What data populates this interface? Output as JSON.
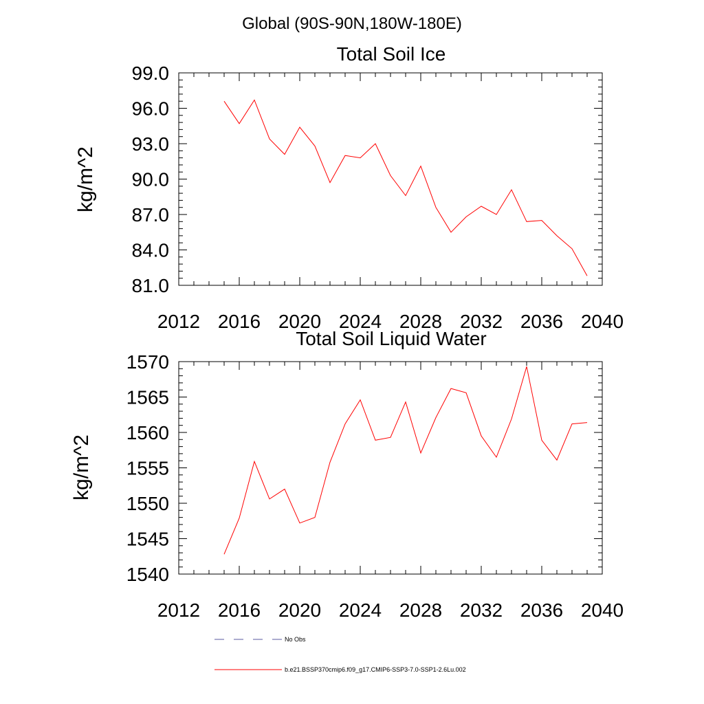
{
  "header": {
    "title": "Global (90S-90N,180W-180E)"
  },
  "legend": {
    "obs_label": "No Obs",
    "obs_color": "#5a5aa0",
    "model_label": "b.e21.BSSP370cmip6.f09_g17.CMIP6-SSP3-7.0-SSP1-2.6Lu.002",
    "model_color": "#ff0000"
  },
  "chart_data": [
    {
      "type": "line",
      "title": "Total Soil Ice",
      "ylabel": "kg/m^2",
      "xlabel": "",
      "xlim": [
        2012,
        2040
      ],
      "ylim": [
        81,
        99
      ],
      "x_ticks": [
        2012,
        2016,
        2020,
        2024,
        2028,
        2032,
        2036,
        2040
      ],
      "y_ticks": [
        "81.0",
        "84.0",
        "87.0",
        "90.0",
        "93.0",
        "96.0",
        "99.0"
      ],
      "series": [
        {
          "color": "#ff0000",
          "x": [
            2015,
            2016,
            2017,
            2018,
            2019,
            2020,
            2021,
            2022,
            2023,
            2024,
            2025,
            2026,
            2027,
            2028,
            2029,
            2030,
            2031,
            2032,
            2033,
            2034,
            2035,
            2036,
            2037,
            2038,
            2039
          ],
          "values": [
            96.6,
            94.7,
            96.7,
            93.4,
            92.1,
            94.4,
            92.8,
            89.7,
            92.0,
            91.8,
            93.0,
            90.3,
            88.6,
            91.1,
            87.6,
            85.5,
            86.8,
            87.7,
            87.0,
            89.1,
            86.4,
            86.5,
            85.2,
            84.1,
            81.8
          ]
        }
      ]
    },
    {
      "type": "line",
      "title": "Total Soil Liquid Water",
      "ylabel": "kg/m^2",
      "xlabel": "",
      "xlim": [
        2012,
        2040
      ],
      "ylim": [
        1540,
        1570
      ],
      "x_ticks": [
        2012,
        2016,
        2020,
        2024,
        2028,
        2032,
        2036,
        2040
      ],
      "y_ticks": [
        "1540",
        "1545",
        "1550",
        "1555",
        "1560",
        "1565",
        "1570"
      ],
      "series": [
        {
          "color": "#ff0000",
          "x": [
            2015,
            2016,
            2017,
            2018,
            2019,
            2020,
            2021,
            2022,
            2023,
            2024,
            2025,
            2026,
            2027,
            2028,
            2029,
            2030,
            2031,
            2032,
            2033,
            2034,
            2035,
            2036,
            2037,
            2038,
            2039
          ],
          "values": [
            1542.8,
            1547.9,
            1555.9,
            1550.6,
            1552.0,
            1547.2,
            1548.0,
            1555.8,
            1561.2,
            1564.6,
            1558.9,
            1559.3,
            1564.3,
            1557.1,
            1562.1,
            1566.2,
            1565.6,
            1559.5,
            1556.5,
            1561.9,
            1569.3,
            1558.9,
            1556.1,
            1561.2,
            1561.4
          ]
        }
      ]
    }
  ]
}
